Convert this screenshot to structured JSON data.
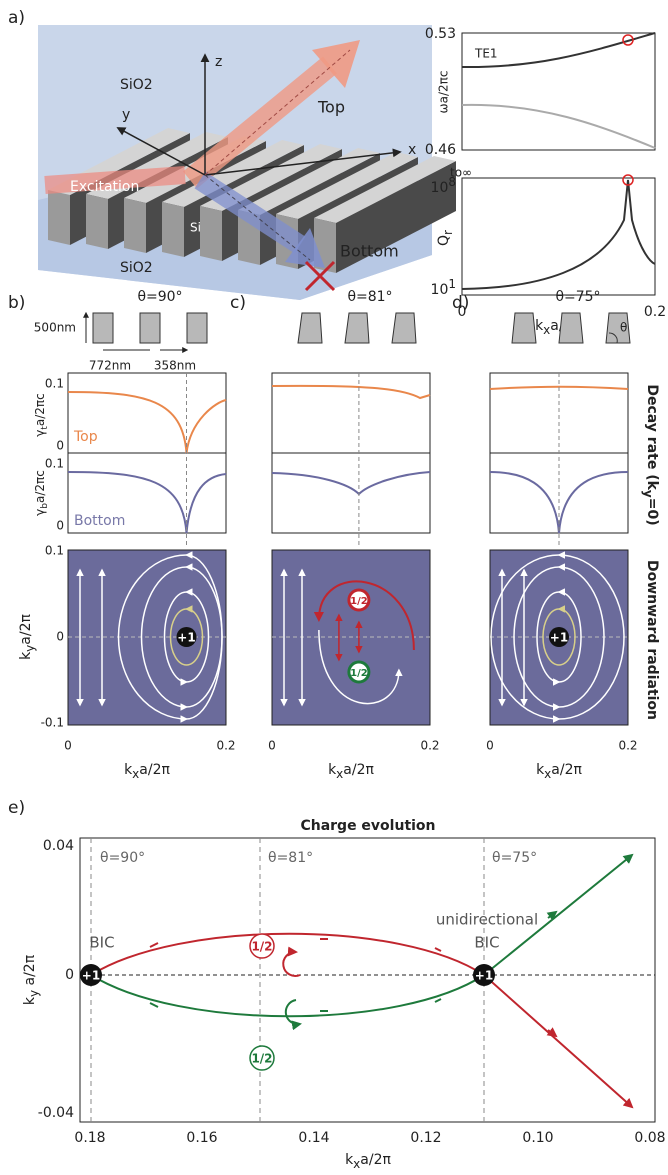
{
  "panel_a": {
    "label": "a)",
    "scene": {
      "top_cladding": "SiO2",
      "z": "z",
      "y": "y",
      "x": "x",
      "top": "Top",
      "excitation": "Excitation",
      "core": "Si",
      "bottom_cladding": "SiO2",
      "bottom": "Bottom"
    },
    "band_plot": {
      "yticks": [
        "0.53",
        "0.46"
      ],
      "ylabel": "ωa/2πc",
      "band": "TE1"
    },
    "q_plot": {
      "top_note": "to∞",
      "yticks": [
        {
          "base": "10",
          "exp": "8"
        },
        {
          "base": "10",
          "exp": "1"
        }
      ],
      "ylabel": {
        "main": "Q",
        "sub": "r"
      }
    },
    "xticks": [
      "0",
      "0.2"
    ],
    "xlabel": {
      "main": "k",
      "sub": "x",
      "rest": "a/2π"
    }
  },
  "panels": [
    {
      "label": "b)",
      "theta": "θ=90°",
      "height": "500nm",
      "period": "772nm",
      "gap": "358nm",
      "top_yticks": [
        "0.1",
        "0"
      ],
      "top_ylabel": {
        "main": "γ",
        "sub": "t",
        "rest": "a/2πc"
      },
      "top_name": "Top",
      "bottom_yticks": [
        "0.1",
        "0"
      ],
      "bottom_ylabel": {
        "main": "γ",
        "sub": "b",
        "rest": "a/2πc"
      },
      "bottom_name": "Bottom",
      "field_yticks": [
        "0.1",
        "0",
        "-0.1"
      ],
      "field_ylabel": {
        "main": "k",
        "sub": "y",
        "rest": "a/2π"
      },
      "xticks": [
        "0",
        "0.2"
      ],
      "xlabel": {
        "main": "k",
        "sub": "x",
        "rest": "a/2π"
      },
      "charges": [
        "+1"
      ]
    },
    {
      "label": "c)",
      "theta": "θ=81°",
      "xticks": [
        "0",
        "0.2"
      ],
      "xlabel": {
        "main": "k",
        "sub": "x",
        "rest": "a/2π"
      },
      "charges": [
        "1/2",
        "1/2"
      ]
    },
    {
      "label": "d)",
      "theta": "θ=75°",
      "angle": "θ",
      "xticks": [
        "0",
        "0.2"
      ],
      "xlabel": {
        "main": "k",
        "sub": "x",
        "rest": "a/2π"
      },
      "charges": [
        "+1"
      ]
    }
  ],
  "side_labels": {
    "decay": {
      "main": "Decay rate (k",
      "sub": "y",
      "rest": "=0)"
    },
    "field": "Downward radiation"
  },
  "panel_e": {
    "label": "e)",
    "title": "Charge evolution",
    "yticks": [
      "0.04",
      "0",
      "-0.04"
    ],
    "xticks": [
      "0.18",
      "0.16",
      "0.14",
      "0.12",
      "0.10",
      "0.08"
    ],
    "ylabel": {
      "main": "k",
      "sub": "y",
      "rest": " a/2π"
    },
    "xlabel": {
      "main": "k",
      "sub": "x",
      "rest": "a/2π"
    },
    "thetas": [
      "θ=90°",
      "θ=81°",
      "θ=75°"
    ],
    "bic_left": "BIC",
    "unidirectional": "unidirectional",
    "bic_right": "BIC",
    "charges": [
      "+1",
      "+1"
    ],
    "halves": [
      "1/2",
      "1/2"
    ]
  }
}
